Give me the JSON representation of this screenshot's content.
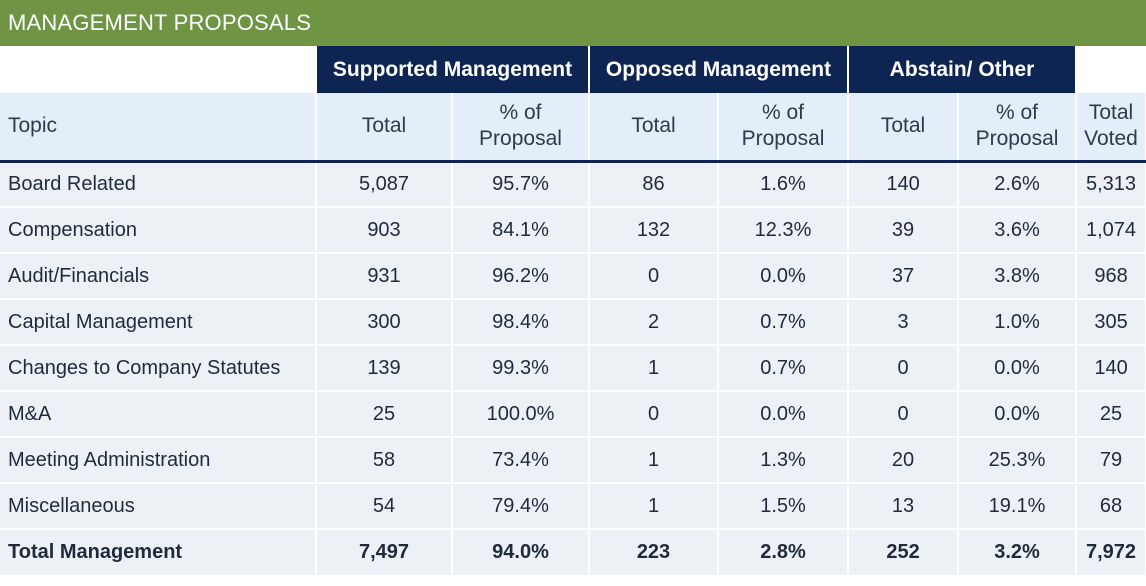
{
  "title": "MANAGEMENT PROPOSALS",
  "groups": [
    "Supported Management",
    "Opposed Management",
    "Abstain/ Other"
  ],
  "headers": {
    "topic": "Topic",
    "total": "Total",
    "pct_line1": "% of",
    "pct_line2": "Proposal",
    "voted_line1": "Total",
    "voted_line2": "Voted"
  },
  "rows": [
    {
      "topic": "Board Related",
      "sup_total": "5,087",
      "sup_pct": "95.7%",
      "opp_total": "86",
      "opp_pct": "1.6%",
      "abs_total": "140",
      "abs_pct": "2.6%",
      "voted": "5,313"
    },
    {
      "topic": "Compensation",
      "sup_total": "903",
      "sup_pct": "84.1%",
      "opp_total": "132",
      "opp_pct": "12.3%",
      "abs_total": "39",
      "abs_pct": "3.6%",
      "voted": "1,074"
    },
    {
      "topic": "Audit/Financials",
      "sup_total": "931",
      "sup_pct": "96.2%",
      "opp_total": "0",
      "opp_pct": "0.0%",
      "abs_total": "37",
      "abs_pct": "3.8%",
      "voted": "968"
    },
    {
      "topic": "Capital Management",
      "sup_total": "300",
      "sup_pct": "98.4%",
      "opp_total": "2",
      "opp_pct": "0.7%",
      "abs_total": "3",
      "abs_pct": "1.0%",
      "voted": "305"
    },
    {
      "topic": "Changes to Company Statutes",
      "sup_total": "139",
      "sup_pct": "99.3%",
      "opp_total": "1",
      "opp_pct": "0.7%",
      "abs_total": "0",
      "abs_pct": "0.0%",
      "voted": "140"
    },
    {
      "topic": "M&A",
      "sup_total": "25",
      "sup_pct": "100.0%",
      "opp_total": "0",
      "opp_pct": "0.0%",
      "abs_total": "0",
      "abs_pct": "0.0%",
      "voted": "25"
    },
    {
      "topic": "Meeting Administration",
      "sup_total": "58",
      "sup_pct": "73.4%",
      "opp_total": "1",
      "opp_pct": "1.3%",
      "abs_total": "20",
      "abs_pct": "25.3%",
      "voted": "79"
    },
    {
      "topic": "Miscellaneous",
      "sup_total": "54",
      "sup_pct": "79.4%",
      "opp_total": "1",
      "opp_pct": "1.5%",
      "abs_total": "13",
      "abs_pct": "19.1%",
      "voted": "68"
    }
  ],
  "total": {
    "topic": "Total Management",
    "sup_total": "7,497",
    "sup_pct": "94.0%",
    "opp_total": "223",
    "opp_pct": "2.8%",
    "abs_total": "252",
    "abs_pct": "3.2%",
    "voted": "7,972"
  }
}
